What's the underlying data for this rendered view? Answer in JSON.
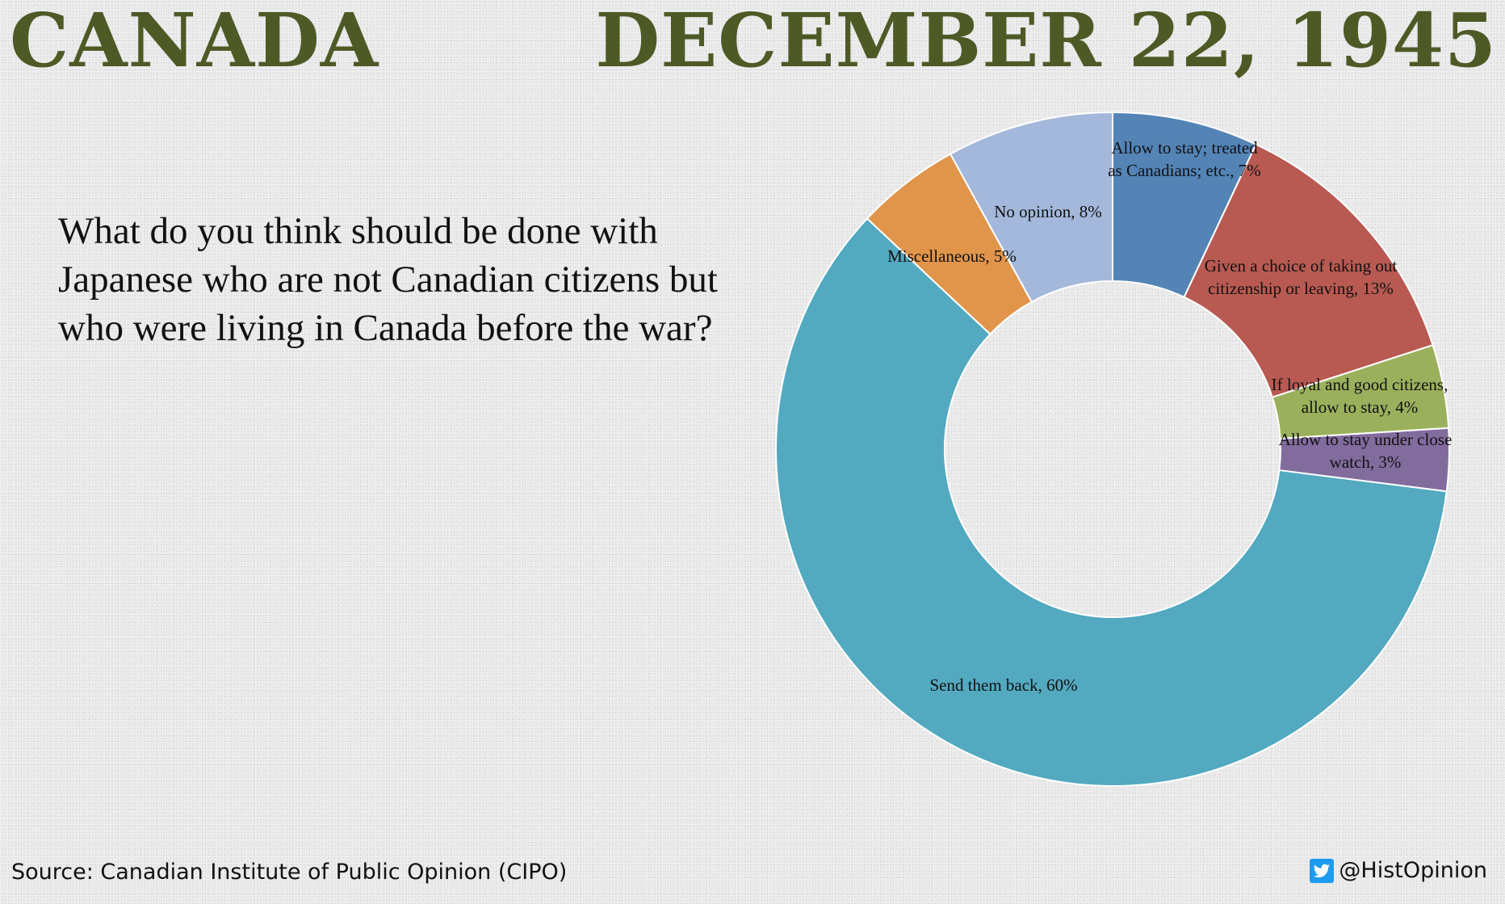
{
  "header": {
    "country": "CANADA",
    "date": "DECEMBER 22, 1945"
  },
  "question": "What do you think should be done with Japanese who are not Canadian citizens but who were living in Canada before the war?",
  "footer": {
    "source": "Source: Canadian Institute of Public Opinion (CIPO)",
    "handle": "@HistOpinion",
    "icon": "twitter-bird-icon"
  },
  "chart_data": {
    "type": "pie",
    "donut": true,
    "categories": [
      "Allow to stay; treated as Canadians; etc.",
      "Given a choice of taking out citizenship or leaving",
      "If loyal and good citizens, allow to stay",
      "Allow to stay under close watch",
      "Send them back",
      "Miscellaneous",
      "No opinion"
    ],
    "values": [
      7,
      13,
      4,
      3,
      60,
      5,
      8
    ],
    "labels": [
      [
        "Allow to stay; treated",
        "as Canadians; etc., 7%"
      ],
      [
        "Given a choice of taking out",
        "citizenship or leaving, 13%"
      ],
      [
        "If loyal and good citizens,",
        "allow to stay, 4%"
      ],
      [
        "Allow to stay under close",
        "watch, 3%"
      ],
      [
        "Send them back, 60%"
      ],
      [
        "Miscellaneous, 5%"
      ],
      [
        "No opinion, 8%"
      ]
    ],
    "colors": [
      "#5484b6",
      "#b85a52",
      "#9bb05c",
      "#826c9e",
      "#52a9c0",
      "#e0954b",
      "#a3b8da"
    ],
    "start_angle_deg": 0,
    "direction": "clockwise"
  }
}
